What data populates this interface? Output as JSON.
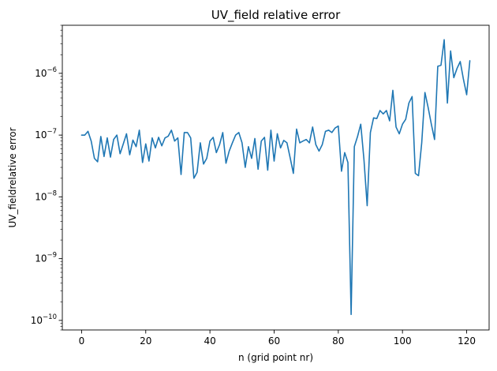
{
  "chart_data": {
    "type": "line",
    "title": "UV_field relative error",
    "xlabel": "n (grid point nr)",
    "ylabel": "UV_fieldrelative error",
    "yscale": "log",
    "xlim": [
      -6,
      127
    ],
    "ylim": [
      7e-11,
      6e-06
    ],
    "grid": false,
    "legend": "none",
    "line_color": "#1f77b4",
    "x_ticks": [
      0,
      20,
      40,
      60,
      80,
      100,
      120
    ],
    "x_tick_labels": [
      "0",
      "20",
      "40",
      "60",
      "80",
      "100",
      "120"
    ],
    "y_ticks": [
      1e-10,
      1e-09,
      1e-08,
      1e-07,
      1e-06
    ],
    "y_tick_labels": [
      {
        "base": "10",
        "exp": "−10"
      },
      {
        "base": "10",
        "exp": "−9"
      },
      {
        "base": "10",
        "exp": "−8"
      },
      {
        "base": "10",
        "exp": "−7"
      },
      {
        "base": "10",
        "exp": "−6"
      }
    ],
    "x": [
      0,
      1,
      2,
      3,
      4,
      5,
      6,
      7,
      8,
      9,
      10,
      11,
      12,
      13,
      14,
      15,
      16,
      17,
      18,
      19,
      20,
      21,
      22,
      23,
      24,
      25,
      26,
      27,
      28,
      29,
      30,
      31,
      32,
      33,
      34,
      35,
      36,
      37,
      38,
      39,
      40,
      41,
      42,
      43,
      44,
      45,
      46,
      47,
      48,
      49,
      50,
      51,
      52,
      53,
      54,
      55,
      56,
      57,
      58,
      59,
      60,
      61,
      62,
      63,
      64,
      65,
      66,
      67,
      68,
      69,
      70,
      71,
      72,
      73,
      74,
      75,
      76,
      77,
      78,
      79,
      80,
      81,
      82,
      83,
      84,
      85,
      86,
      87,
      88,
      89,
      90,
      91,
      92,
      93,
      94,
      95,
      96,
      97,
      98,
      99,
      100,
      101,
      102,
      103,
      104,
      105,
      106,
      107,
      108,
      109,
      110,
      111,
      112,
      113,
      114,
      115,
      116,
      117,
      118,
      119,
      120,
      121
    ],
    "values": [
      1e-07,
      1e-07,
      1.15e-07,
      8e-08,
      4.2e-08,
      3.7e-08,
      9.5e-08,
      4.5e-08,
      9e-08,
      4.4e-08,
      8.5e-08,
      1e-07,
      5e-08,
      7.2e-08,
      1.05e-07,
      4.8e-08,
      8.3e-08,
      6.5e-08,
      1.2e-07,
      3.6e-08,
      7.2e-08,
      3.8e-08,
      9e-08,
      6.2e-08,
      9.2e-08,
      6.7e-08,
      9e-08,
      9.6e-08,
      1.2e-07,
      8e-08,
      9e-08,
      2.3e-08,
      1.1e-07,
      1.1e-07,
      9e-08,
      2e-08,
      2.5e-08,
      7.5e-08,
      3.4e-08,
      4.2e-08,
      8e-08,
      9.2e-08,
      5.2e-08,
      7e-08,
      1.1e-07,
      3.5e-08,
      5.5e-08,
      7.5e-08,
      1e-07,
      1.1e-07,
      7.5e-08,
      3e-08,
      6.5e-08,
      4.2e-08,
      8.8e-08,
      2.8e-08,
      8e-08,
      9.2e-08,
      2.7e-08,
      1.2e-07,
      3.8e-08,
      1.05e-07,
      6.2e-08,
      8.2e-08,
      7.5e-08,
      4.3e-08,
      2.4e-08,
      1.25e-07,
      7.5e-08,
      8e-08,
      8.5e-08,
      7.5e-08,
      1.35e-07,
      7e-08,
      5.5e-08,
      7e-08,
      1.15e-07,
      1.2e-07,
      1.1e-07,
      1.3e-07,
      1.4e-07,
      2.6e-08,
      5.2e-08,
      3.6e-08,
      1.25e-10,
      6.5e-08,
      9.5e-08,
      1.5e-07,
      4e-08,
      7.2e-09,
      1.1e-07,
      1.9e-07,
      1.85e-07,
      2.5e-07,
      2.2e-07,
      2.5e-07,
      1.7e-07,
      5.3e-07,
      1.35e-07,
      1.05e-07,
      1.5e-07,
      1.8e-07,
      3.3e-07,
      4.2e-07,
      2.4e-08,
      2.2e-08,
      7.5e-08,
      4.9e-07,
      2.8e-07,
      1.5e-07,
      8.5e-08,
      1.3e-06,
      1.35e-06,
      3.5e-06,
      3.3e-07,
      2.3e-06,
      8.5e-07,
      1.2e-06,
      1.55e-06,
      8e-07,
      4.5e-07,
      1.6e-06
    ]
  }
}
